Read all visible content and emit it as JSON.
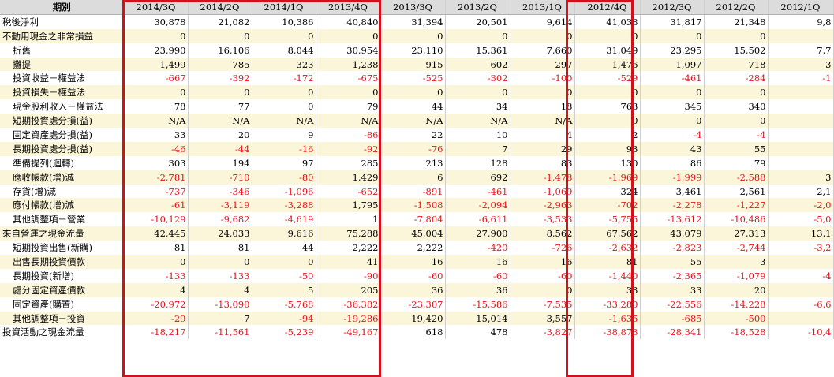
{
  "header": {
    "corner": "期別",
    "periods": [
      "2014/3Q",
      "2014/2Q",
      "2014/1Q",
      "2013/4Q",
      "2013/3Q",
      "2013/2Q",
      "2013/1Q",
      "2012/4Q",
      "2012/3Q",
      "2012/2Q",
      "2012/1Q"
    ]
  },
  "rows": [
    {
      "label": "稅後淨利",
      "indent": false,
      "values": [
        "30,878",
        "21,082",
        "10,386",
        "40,840",
        "31,394",
        "20,501",
        "9,614",
        "41,038",
        "31,817",
        "21,348",
        "9,8"
      ]
    },
    {
      "label": "不動用現金之非常損益",
      "indent": false,
      "values": [
        "0",
        "0",
        "0",
        "0",
        "0",
        "0",
        "0",
        "0",
        "0",
        "0",
        ""
      ]
    },
    {
      "label": "折舊",
      "indent": true,
      "values": [
        "23,990",
        "16,106",
        "8,044",
        "30,954",
        "23,110",
        "15,361",
        "7,660",
        "31,049",
        "23,295",
        "15,502",
        "7,7"
      ]
    },
    {
      "label": "攤提",
      "indent": true,
      "values": [
        "1,499",
        "785",
        "323",
        "1,238",
        "915",
        "602",
        "297",
        "1,476",
        "1,097",
        "718",
        "3"
      ]
    },
    {
      "label": "投資收益－權益法",
      "indent": true,
      "values": [
        "-667",
        "-392",
        "-172",
        "-675",
        "-525",
        "-302",
        "-100",
        "-529",
        "-461",
        "-284",
        "-1"
      ]
    },
    {
      "label": "投資損失－權益法",
      "indent": true,
      "values": [
        "0",
        "0",
        "0",
        "0",
        "0",
        "0",
        "0",
        "0",
        "0",
        "0",
        ""
      ]
    },
    {
      "label": "現金股利收入－權益法",
      "indent": true,
      "values": [
        "78",
        "77",
        "0",
        "79",
        "44",
        "34",
        "18",
        "763",
        "345",
        "340",
        ""
      ]
    },
    {
      "label": "短期投資處分損(益)",
      "indent": true,
      "values": [
        "N/A",
        "N/A",
        "N/A",
        "N/A",
        "N/A",
        "N/A",
        "N/A",
        "0",
        "0",
        "0",
        ""
      ]
    },
    {
      "label": "固定資產處分損(益)",
      "indent": true,
      "values": [
        "33",
        "20",
        "9",
        "-86",
        "22",
        "10",
        "4",
        "2",
        "-4",
        "-4",
        ""
      ]
    },
    {
      "label": "長期投資處分損(益)",
      "indent": true,
      "values": [
        "-46",
        "-44",
        "-16",
        "-92",
        "-76",
        "7",
        "29",
        "93",
        "43",
        "55",
        ""
      ]
    },
    {
      "label": "準備提列(迴轉)",
      "indent": true,
      "values": [
        "303",
        "194",
        "97",
        "285",
        "213",
        "128",
        "83",
        "130",
        "86",
        "79",
        ""
      ]
    },
    {
      "label": "應收帳款(增)減",
      "indent": true,
      "values": [
        "-2,781",
        "-710",
        "-80",
        "1,429",
        "6",
        "692",
        "-1,478",
        "-1,969",
        "-1,999",
        "-2,588",
        "3"
      ]
    },
    {
      "label": "存貨(增)減",
      "indent": true,
      "values": [
        "-737",
        "-346",
        "-1,096",
        "-652",
        "-891",
        "-461",
        "-1,069",
        "324",
        "3,461",
        "2,561",
        "2,1"
      ]
    },
    {
      "label": "應付帳款(增)減",
      "indent": true,
      "values": [
        "-61",
        "-3,119",
        "-3,288",
        "1,795",
        "-1,508",
        "-2,094",
        "-2,963",
        "-702",
        "-2,278",
        "-1,227",
        "-2,0"
      ]
    },
    {
      "label": "其他調整項－營業",
      "indent": true,
      "values": [
        "-10,129",
        "-9,682",
        "-4,619",
        "1",
        "-7,804",
        "-6,611",
        "-3,533",
        "-5,755",
        "-13,612",
        "-10,486",
        "-5,0"
      ]
    },
    {
      "label": "來自營運之現金流量",
      "indent": false,
      "values": [
        "42,445",
        "24,033",
        "9,616",
        "75,288",
        "45,004",
        "27,900",
        "8,562",
        "67,562",
        "43,079",
        "27,313",
        "13,1"
      ]
    },
    {
      "label": "短期投資出售(新購)",
      "indent": true,
      "values": [
        "81",
        "81",
        "44",
        "2,222",
        "2,222",
        "-420",
        "-726",
        "-2,632",
        "-2,823",
        "-2,744",
        "-3,2"
      ]
    },
    {
      "label": "出售長期投資價款",
      "indent": true,
      "values": [
        "0",
        "0",
        "0",
        "41",
        "16",
        "16",
        "16",
        "81",
        "55",
        "3",
        ""
      ]
    },
    {
      "label": "長期投資(新增)",
      "indent": true,
      "values": [
        "-133",
        "-133",
        "-50",
        "-90",
        "-60",
        "-60",
        "-60",
        "-1,440",
        "-2,365",
        "-1,079",
        "-4"
      ]
    },
    {
      "label": "處分固定資產價款",
      "indent": true,
      "values": [
        "4",
        "4",
        "5",
        "205",
        "36",
        "36",
        "0",
        "33",
        "33",
        "20",
        ""
      ]
    },
    {
      "label": "固定資產(購置)",
      "indent": true,
      "values": [
        "-20,972",
        "-13,090",
        "-5,768",
        "-36,382",
        "-23,307",
        "-15,586",
        "-7,535",
        "-33,280",
        "-22,556",
        "-14,228",
        "-6,6"
      ]
    },
    {
      "label": "其他調整項－投資",
      "indent": true,
      "values": [
        "-29",
        "7",
        "-94",
        "-19,286",
        "19,420",
        "15,014",
        "3,557",
        "-1,635",
        "-685",
        "-500",
        ""
      ]
    },
    {
      "label": "投資活動之現金流量",
      "indent": false,
      "values": [
        "-18,217",
        "-11,561",
        "-5,239",
        "-49,167",
        "618",
        "478",
        "-3,827",
        "-38,873",
        "-28,341",
        "-18,528",
        "-10,4"
      ]
    }
  ],
  "highlight_color": "#d4101c",
  "negative_color": "#e8141a"
}
